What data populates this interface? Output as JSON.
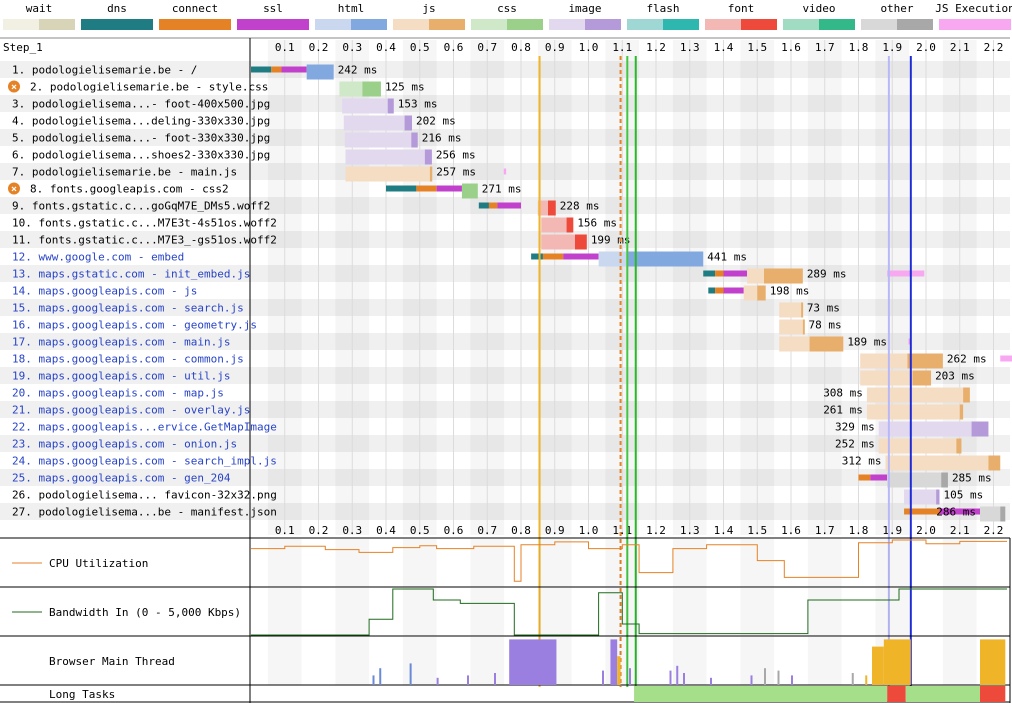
{
  "step_label": "Step_1",
  "legend": [
    {
      "label": "wait",
      "colors": [
        "#f2f0e2",
        "#d8d4b8"
      ]
    },
    {
      "label": "dns",
      "colors": [
        "#1f7c83",
        "#1f7c83"
      ]
    },
    {
      "label": "connect",
      "colors": [
        "#e58226",
        "#e58226"
      ]
    },
    {
      "label": "ssl",
      "colors": [
        "#c141cd",
        "#c141cd"
      ]
    },
    {
      "label": "html",
      "colors": [
        "#c9d7ef",
        "#82a8e0"
      ]
    },
    {
      "label": "js",
      "colors": [
        "#f5ddc4",
        "#e8ae6c"
      ]
    },
    {
      "label": "css",
      "colors": [
        "#cfe8c8",
        "#9ad08a"
      ]
    },
    {
      "label": "image",
      "colors": [
        "#e2d9ef",
        "#b49ad8"
      ]
    },
    {
      "label": "flash",
      "colors": [
        "#9fd7d4",
        "#2db7ae"
      ]
    },
    {
      "label": "font",
      "colors": [
        "#f4b8b4",
        "#ee4a3c"
      ]
    },
    {
      "label": "video",
      "colors": [
        "#9fdcc2",
        "#33b88a"
      ]
    },
    {
      "label": "other",
      "colors": [
        "#d8d8d8",
        "#a8a8a8"
      ]
    },
    {
      "label": "JS Execution",
      "colors": [
        "#f8a8f0",
        "#f8a8f0"
      ]
    }
  ],
  "type_colors": {
    "html": [
      "#c9d7ef",
      "#82a8e0"
    ],
    "js": [
      "#f5ddc4",
      "#e8ae6c"
    ],
    "css": [
      "#cfe8c8",
      "#9ad08a"
    ],
    "image": [
      "#e2d9ef",
      "#b49ad8"
    ],
    "font": [
      "#f4b8b4",
      "#ee4a3c"
    ],
    "other": [
      "#d8d8d8",
      "#a8a8a8"
    ],
    "dns": "#1f7c83",
    "connect": "#e58226",
    "ssl": "#c141cd",
    "wait": "#f2f0e2",
    "jsexec": "#f8a8f0"
  },
  "chart_data": {
    "type": "waterfall",
    "x_unit": "s",
    "xlim": [
      0,
      2.22
    ],
    "ticks": [
      "0.1",
      "0.2",
      "0.3",
      "0.4",
      "0.5",
      "0.6",
      "0.7",
      "0.8",
      "0.9",
      "1.0",
      "1.1",
      "1.2",
      "1.3",
      "1.4",
      "1.5",
      "1.6",
      "1.7",
      "1.8",
      "1.9",
      "2.0",
      "2.1",
      "2.2"
    ],
    "markers": [
      {
        "t": 0.855,
        "color": "#f0b429",
        "style": "solid"
      },
      {
        "t": 1.095,
        "color": "#e58226",
        "style": "dashed"
      },
      {
        "t": 1.115,
        "color": "#40c840",
        "style": "solid"
      },
      {
        "t": 1.14,
        "color": "#28b828",
        "style": "solid"
      },
      {
        "t": 1.89,
        "color": "#b8b8f8",
        "style": "solid"
      },
      {
        "t": 1.955,
        "color": "#1e2cd8",
        "style": "solid"
      }
    ],
    "requests": [
      {
        "label": "1. podologielisemarie.be - /",
        "link": false,
        "warn": false,
        "type": "html",
        "dns": [
          0.0,
          0.06
        ],
        "connect": [
          0.06,
          0.09
        ],
        "ssl": [
          0.09,
          0.165
        ],
        "wait": [
          0.165,
          0.165
        ],
        "download": [
          0.165,
          0.245
        ],
        "time": "242 ms",
        "exec": []
      },
      {
        "label": "2. podologielisemarie.be - style.css",
        "link": false,
        "warn": true,
        "type": "css",
        "wait": [
          0.262,
          0.33
        ],
        "download": [
          0.33,
          0.385
        ],
        "time": "125 ms",
        "exec": []
      },
      {
        "label": "3. podologielisema...- foot-400x500.jpg",
        "link": false,
        "warn": false,
        "type": "image",
        "wait": [
          0.27,
          0.405
        ],
        "download": [
          0.405,
          0.423
        ],
        "time": "153 ms",
        "exec": []
      },
      {
        "label": "4. podologielisema...deling-330x330.jpg",
        "link": false,
        "warn": false,
        "type": "image",
        "wait": [
          0.275,
          0.455
        ],
        "download": [
          0.455,
          0.477
        ],
        "time": "202 ms",
        "exec": []
      },
      {
        "label": "5. podologielisema...- foot-330x330.jpg",
        "link": false,
        "warn": false,
        "type": "image",
        "wait": [
          0.278,
          0.475
        ],
        "download": [
          0.475,
          0.494
        ],
        "time": "216 ms",
        "exec": []
      },
      {
        "label": "6. podologielisema...shoes2-330x330.jpg",
        "link": false,
        "warn": false,
        "type": "image",
        "wait": [
          0.28,
          0.515
        ],
        "download": [
          0.515,
          0.536
        ],
        "time": "256 ms",
        "exec": []
      },
      {
        "label": "7. podologielisemarie.be - main.js",
        "link": false,
        "warn": false,
        "type": "js",
        "wait": [
          0.28,
          0.53
        ],
        "download": [
          0.53,
          0.537
        ],
        "time": "257 ms",
        "exec": [
          [
            0.749,
            0.756
          ]
        ]
      },
      {
        "label": "8. fonts.googleapis.com - css2",
        "link": false,
        "warn": true,
        "type": "css",
        "dns": [
          0.4,
          0.49
        ],
        "connect": [
          0.49,
          0.55
        ],
        "ssl": [
          0.55,
          0.625
        ],
        "wait": [
          0.625,
          0.625
        ],
        "download": [
          0.625,
          0.672
        ],
        "time": "271 ms",
        "exec": []
      },
      {
        "label": "9. fonts.gstatic.c...goGqM7E_DMs5.woff2",
        "link": false,
        "warn": false,
        "type": "font",
        "dns": [
          0.675,
          0.705
        ],
        "connect": [
          0.705,
          0.73
        ],
        "ssl": [
          0.73,
          0.8
        ],
        "wait": [
          0.85,
          0.88
        ],
        "download": [
          0.88,
          0.903
        ],
        "time": "228 ms",
        "exec": []
      },
      {
        "label": "10. fonts.gstatic.c...M7E3t-4s51os.woff2",
        "link": false,
        "warn": false,
        "type": "font",
        "wait": [
          0.86,
          0.935
        ],
        "download": [
          0.935,
          0.955
        ],
        "time": "156 ms",
        "exec": []
      },
      {
        "label": "11. fonts.gstatic.c...M7E3_-gs51os.woff2",
        "link": false,
        "warn": false,
        "type": "font",
        "wait": [
          0.86,
          0.96
        ],
        "download": [
          0.96,
          0.995
        ],
        "time": "199 ms",
        "exec": []
      },
      {
        "label": "12. www.google.com - embed",
        "link": true,
        "warn": false,
        "type": "html",
        "dns": [
          0.83,
          0.865
        ],
        "connect": [
          0.865,
          0.925
        ],
        "ssl": [
          0.925,
          1.03
        ],
        "wait": [
          1.03,
          1.115
        ],
        "download": [
          1.115,
          1.34
        ],
        "time": "441 ms",
        "exec": []
      },
      {
        "label": "13. maps.gstatic.com - init_embed.js",
        "link": true,
        "warn": false,
        "type": "js",
        "dns": [
          1.34,
          1.375
        ],
        "connect": [
          1.375,
          1.4
        ],
        "ssl": [
          1.4,
          1.47
        ],
        "wait": [
          1.47,
          1.52
        ],
        "download": [
          1.52,
          1.635
        ],
        "time": "289 ms",
        "exec": [
          [
            1.885,
            1.995
          ]
        ]
      },
      {
        "label": "14. maps.googleapis.com - js",
        "link": true,
        "warn": false,
        "type": "js",
        "dns": [
          1.355,
          1.375
        ],
        "connect": [
          1.375,
          1.4
        ],
        "ssl": [
          1.4,
          1.46
        ],
        "wait": [
          1.46,
          1.5
        ],
        "download": [
          1.5,
          1.525
        ],
        "time": "198 ms",
        "exec": []
      },
      {
        "label": "15. maps.googleapis.com - search.js",
        "link": true,
        "warn": false,
        "type": "js",
        "wait": [
          1.565,
          1.63
        ],
        "download": [
          1.63,
          1.635
        ],
        "time": "73 ms",
        "exec": []
      },
      {
        "label": "16. maps.googleapis.com - geometry.js",
        "link": true,
        "warn": false,
        "type": "js",
        "wait": [
          1.565,
          1.635
        ],
        "download": [
          1.635,
          1.64
        ],
        "time": "78 ms",
        "exec": []
      },
      {
        "label": "17. maps.googleapis.com - main.js",
        "link": true,
        "warn": false,
        "type": "js",
        "wait": [
          1.565,
          1.655
        ],
        "download": [
          1.655,
          1.755
        ],
        "time": "189 ms",
        "exec": [
          [
            1.948,
            1.955
          ]
        ]
      },
      {
        "label": "18. maps.googleapis.com - common.js",
        "link": true,
        "warn": false,
        "type": "js",
        "wait": [
          1.805,
          1.945
        ],
        "download": [
          1.945,
          2.05
        ],
        "time": "262 ms",
        "exec": [
          [
            2.22,
            2.3
          ]
        ]
      },
      {
        "label": "19. maps.googleapis.com - util.js",
        "link": true,
        "warn": false,
        "type": "js",
        "wait": [
          1.805,
          1.96
        ],
        "download": [
          1.96,
          2.015
        ],
        "time": "203 ms",
        "exec": []
      },
      {
        "label": "20. maps.googleapis.com - map.js",
        "link": true,
        "warn": false,
        "type": "js",
        "wait": [
          1.825,
          2.11
        ],
        "download": [
          2.11,
          2.13
        ],
        "time": "308 ms",
        "exec": []
      },
      {
        "label": "21. maps.googleapis.com - overlay.js",
        "link": true,
        "warn": false,
        "type": "js",
        "wait": [
          1.825,
          2.1
        ],
        "download": [
          2.1,
          2.11
        ],
        "time": "261 ms",
        "exec": []
      },
      {
        "label": "22. maps.googleapis...ervice.GetMapImage",
        "link": true,
        "warn": false,
        "type": "image",
        "wait": [
          1.86,
          2.135
        ],
        "download": [
          2.135,
          2.185
        ],
        "time": "329 ms",
        "exec": []
      },
      {
        "label": "23. maps.googleapis.com - onion.js",
        "link": true,
        "warn": false,
        "type": "js",
        "wait": [
          1.86,
          2.09
        ],
        "download": [
          2.09,
          2.105
        ],
        "time": "252 ms",
        "exec": []
      },
      {
        "label": "24. maps.googleapis.com - search_impl.js",
        "link": true,
        "warn": false,
        "type": "js",
        "wait": [
          1.88,
          2.185
        ],
        "download": [
          2.185,
          2.22
        ],
        "time": "312 ms",
        "exec": []
      },
      {
        "label": "25. maps.googleapis.com - gen_204",
        "link": true,
        "warn": false,
        "type": "other",
        "connect": [
          1.8,
          1.835
        ],
        "ssl": [
          1.835,
          1.885
        ],
        "wait": [
          1.885,
          2.045
        ],
        "download": [
          2.045,
          2.065
        ],
        "time": "285 ms",
        "exec": []
      },
      {
        "label": "26. podologielisema... favicon-32x32.png",
        "link": false,
        "warn": false,
        "type": "image",
        "wait": [
          1.935,
          2.03
        ],
        "download": [
          2.03,
          2.04
        ],
        "time": "105 ms",
        "exec": []
      },
      {
        "label": "27. podologielisema...be - manifest.json",
        "link": false,
        "warn": false,
        "type": "other",
        "connect": [
          1.935,
          2.04
        ],
        "ssl": [
          2.04,
          2.16
        ],
        "wait": [
          2.16,
          2.22
        ],
        "download": [
          2.22,
          2.235
        ],
        "time": "286 ms",
        "exec": []
      }
    ],
    "cpu": {
      "label": "CPU Utilization",
      "color": "#e58226",
      "points": [
        [
          0,
          0.8
        ],
        [
          0.1,
          0.8
        ],
        [
          0.1,
          0.85
        ],
        [
          0.22,
          0.85
        ],
        [
          0.22,
          0.78
        ],
        [
          0.32,
          0.78
        ],
        [
          0.32,
          0.72
        ],
        [
          0.42,
          0.72
        ],
        [
          0.42,
          0.82
        ],
        [
          0.5,
          0.82
        ],
        [
          0.5,
          0.86
        ],
        [
          0.55,
          0.86
        ],
        [
          0.55,
          0.8
        ],
        [
          0.66,
          0.8
        ],
        [
          0.66,
          0.85
        ],
        [
          0.78,
          0.85
        ],
        [
          0.78,
          0.12
        ],
        [
          0.8,
          0.12
        ],
        [
          0.8,
          0.88
        ],
        [
          0.9,
          0.88
        ],
        [
          0.9,
          0.94
        ],
        [
          1.0,
          0.94
        ],
        [
          1.0,
          0.8
        ],
        [
          1.1,
          0.8
        ],
        [
          1.1,
          0.88
        ],
        [
          1.15,
          0.88
        ],
        [
          1.15,
          0.3
        ],
        [
          1.25,
          0.3
        ],
        [
          1.25,
          0.8
        ],
        [
          1.35,
          0.8
        ],
        [
          1.35,
          0.88
        ],
        [
          1.5,
          0.88
        ],
        [
          1.5,
          0.55
        ],
        [
          1.58,
          0.55
        ],
        [
          1.58,
          0.2
        ],
        [
          1.8,
          0.2
        ],
        [
          1.8,
          0.92
        ],
        [
          1.9,
          0.92
        ],
        [
          1.9,
          0.98
        ],
        [
          2.0,
          0.98
        ],
        [
          2.0,
          0.9
        ],
        [
          2.1,
          0.9
        ],
        [
          2.1,
          0.95
        ],
        [
          2.24,
          0.95
        ]
      ]
    },
    "bandwidth": {
      "label": "Bandwidth In (0 - 5,000 Kbps)",
      "color": "#1f6b1f",
      "points": [
        [
          0,
          0.02
        ],
        [
          0.35,
          0.02
        ],
        [
          0.35,
          0.35
        ],
        [
          0.42,
          0.35
        ],
        [
          0.42,
          0.98
        ],
        [
          0.54,
          0.98
        ],
        [
          0.54,
          0.75
        ],
        [
          0.62,
          0.75
        ],
        [
          0.62,
          0.68
        ],
        [
          0.78,
          0.68
        ],
        [
          0.78,
          0.02
        ],
        [
          1.03,
          0.02
        ],
        [
          1.03,
          0.9
        ],
        [
          1.1,
          0.9
        ],
        [
          1.1,
          0.25
        ],
        [
          1.15,
          0.25
        ],
        [
          1.15,
          0.05
        ],
        [
          1.65,
          0.05
        ],
        [
          1.65,
          0.75
        ],
        [
          1.92,
          0.75
        ],
        [
          1.92,
          0.98
        ],
        [
          2.24,
          0.98
        ]
      ]
    },
    "main_thread": {
      "label": "Browser Main Thread",
      "blocks": [
        {
          "t0": 0.765,
          "t1": 0.905,
          "h": 0.95,
          "color": "#9b7fe0"
        },
        {
          "t0": 1.065,
          "t1": 1.085,
          "h": 0.95,
          "color": "#9b7fe0"
        },
        {
          "t0": 1.085,
          "t1": 1.095,
          "h": 0.6,
          "color": "#f0b429"
        },
        {
          "t0": 1.84,
          "t1": 1.875,
          "h": 0.8,
          "color": "#f0b429"
        },
        {
          "t0": 1.875,
          "t1": 1.955,
          "h": 0.95,
          "color": "#f0b429"
        },
        {
          "t0": 2.16,
          "t1": 2.235,
          "h": 0.95,
          "color": "#f0b429"
        }
      ],
      "spikes": [
        {
          "t": 0.38,
          "h": 0.35,
          "color": "#6a8ad8"
        },
        {
          "t": 0.36,
          "h": 0.2,
          "color": "#6a8ad8"
        },
        {
          "t": 0.47,
          "h": 0.45,
          "color": "#6a8ad8"
        },
        {
          "t": 0.55,
          "h": 0.15,
          "color": "#9b7fe0"
        },
        {
          "t": 0.64,
          "h": 0.2,
          "color": "#9b7fe0"
        },
        {
          "t": 0.72,
          "h": 0.25,
          "color": "#9b7fe0"
        },
        {
          "t": 1.04,
          "h": 0.3,
          "color": "#9b7fe0"
        },
        {
          "t": 1.12,
          "h": 0.35,
          "color": "#9b7fe0"
        },
        {
          "t": 1.24,
          "h": 0.3,
          "color": "#9b7fe0"
        },
        {
          "t": 1.26,
          "h": 0.4,
          "color": "#9b7fe0"
        },
        {
          "t": 1.28,
          "h": 0.25,
          "color": "#9b7fe0"
        },
        {
          "t": 1.36,
          "h": 0.15,
          "color": "#9b7fe0"
        },
        {
          "t": 1.48,
          "h": 0.2,
          "color": "#9b7fe0"
        },
        {
          "t": 1.52,
          "h": 0.35,
          "color": "#a8a8a8"
        },
        {
          "t": 1.56,
          "h": 0.3,
          "color": "#a8a8a8"
        },
        {
          "t": 1.6,
          "h": 0.2,
          "color": "#9b7fe0"
        },
        {
          "t": 1.78,
          "h": 0.25,
          "color": "#a8a8a8"
        },
        {
          "t": 1.82,
          "h": 0.2,
          "color": "#f0b429"
        }
      ]
    },
    "long_tasks": {
      "label": "Long Tasks",
      "segments": [
        {
          "t0": 1.135,
          "t1": 1.885,
          "color": "#a5df8a"
        },
        {
          "t0": 1.885,
          "t1": 1.94,
          "color": "#ee4a3c"
        },
        {
          "t0": 1.94,
          "t1": 2.16,
          "color": "#a5df8a"
        },
        {
          "t0": 2.16,
          "t1": 2.235,
          "color": "#ee4a3c"
        }
      ]
    }
  }
}
